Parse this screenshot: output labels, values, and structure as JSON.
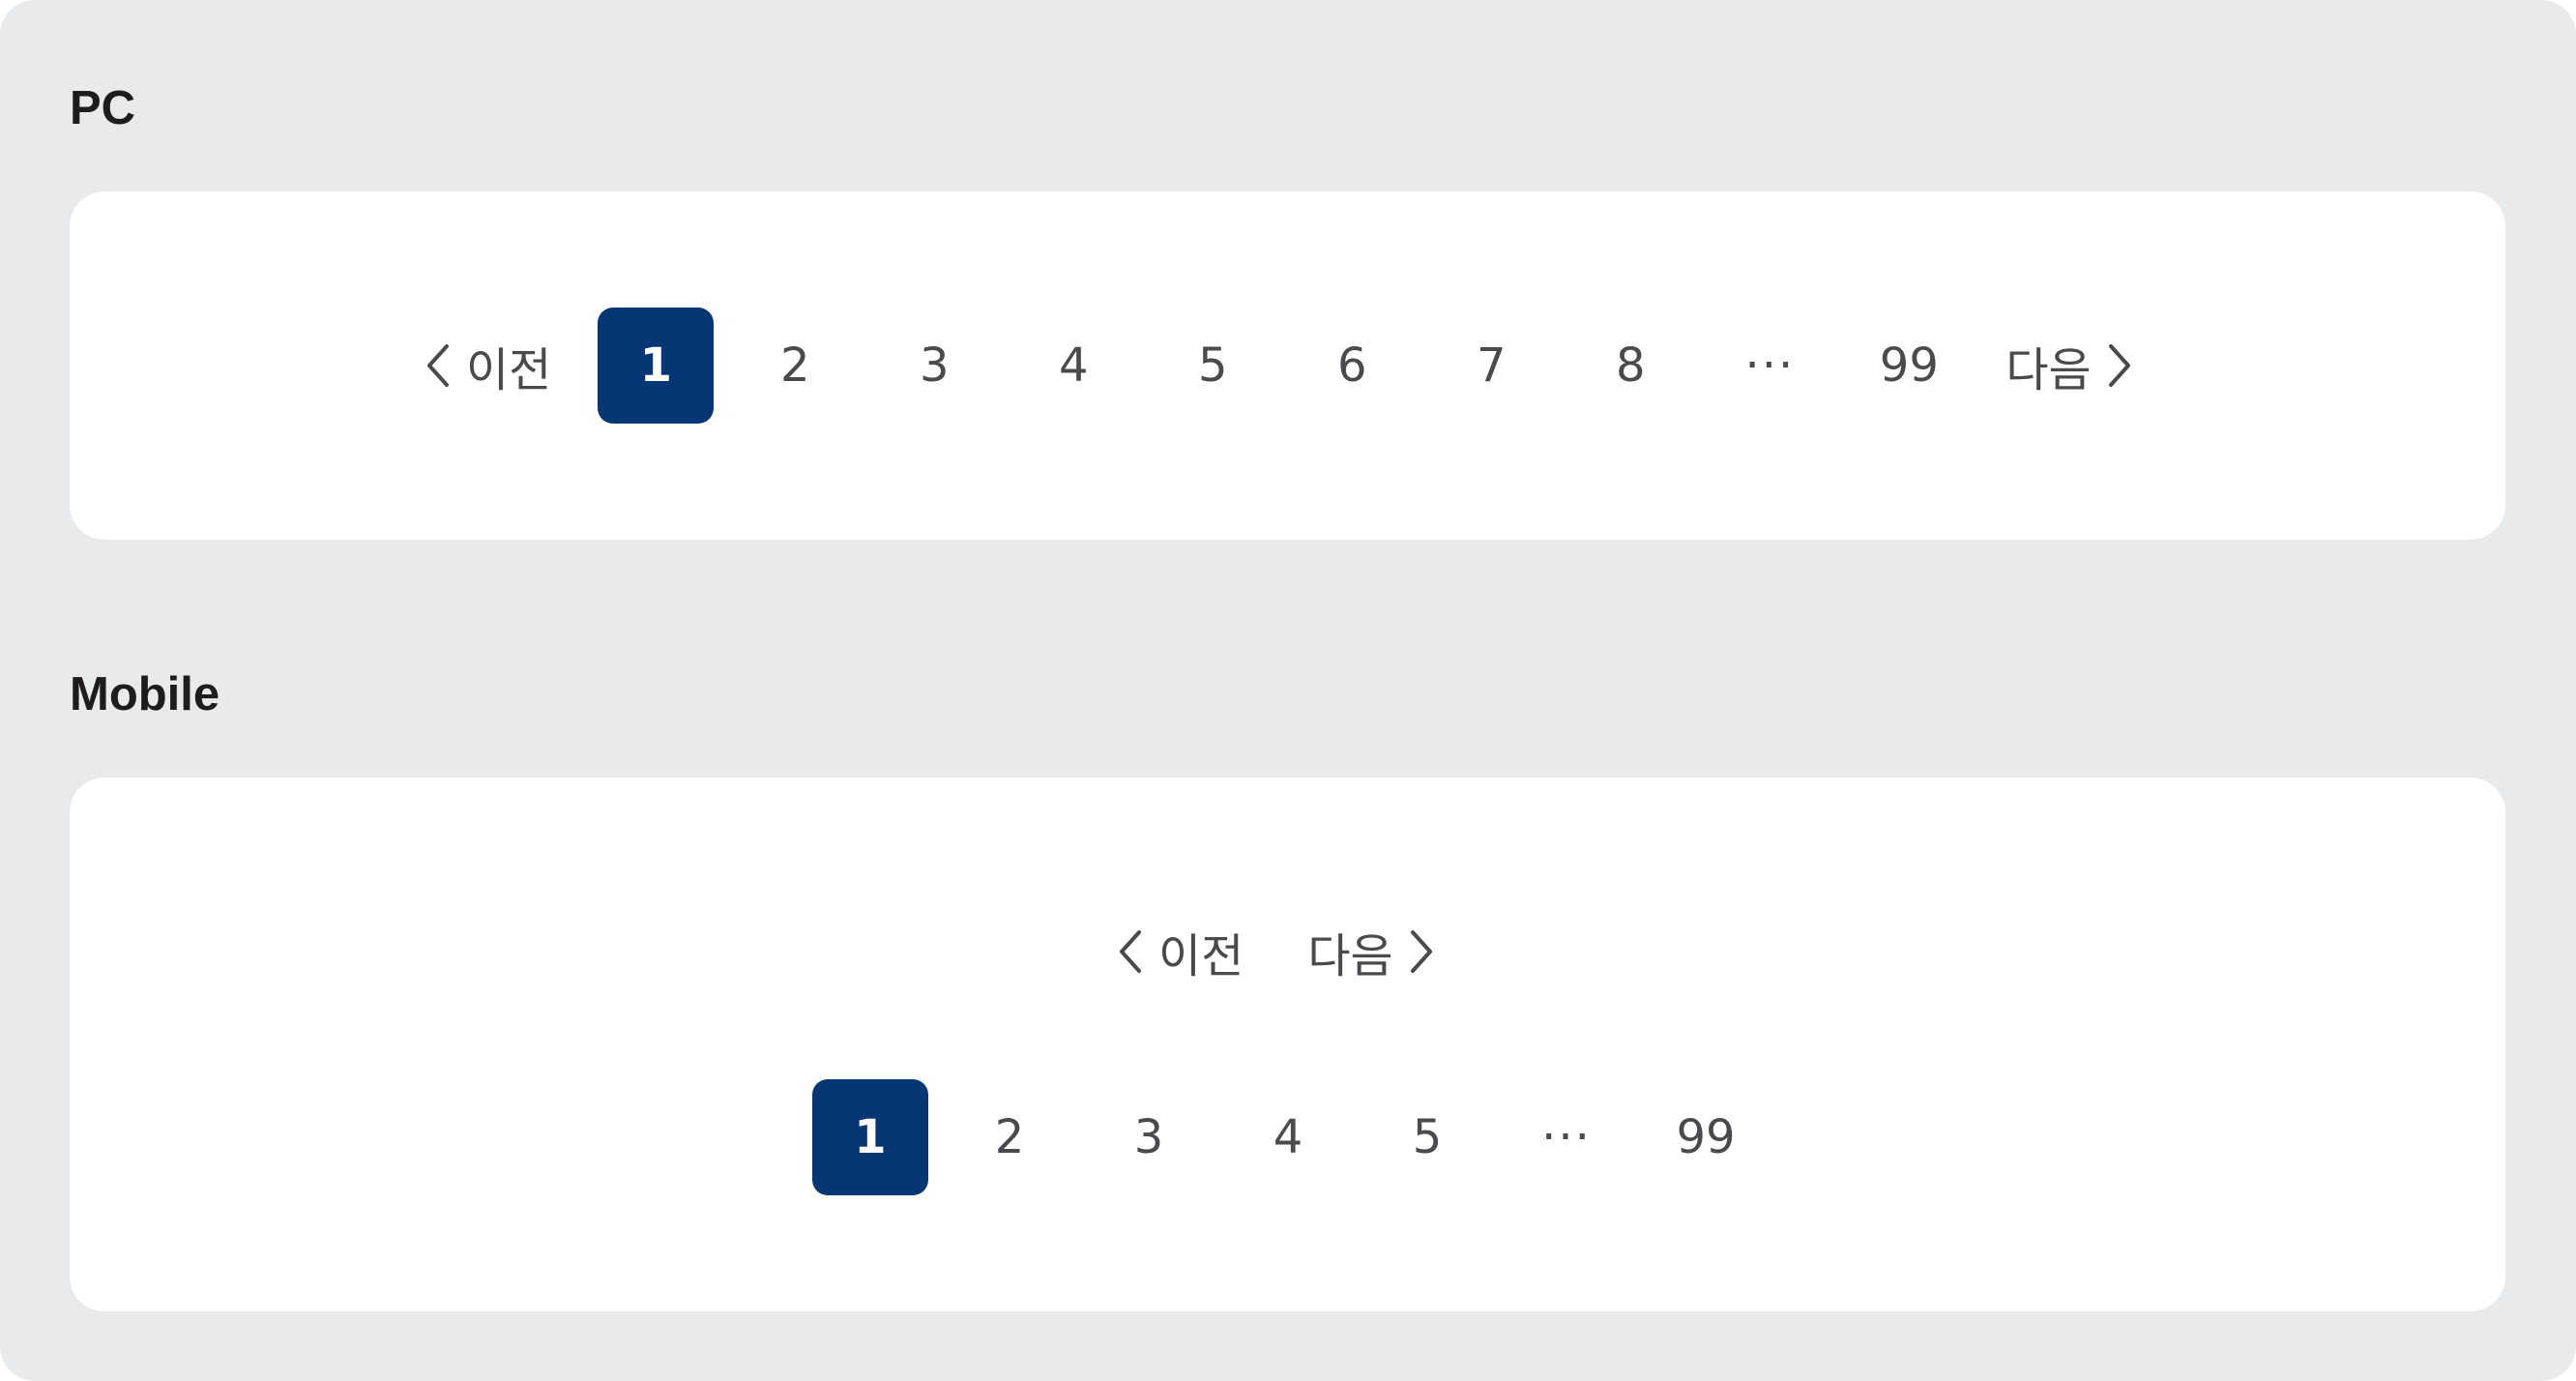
{
  "pc": {
    "title": "PC",
    "prev_label": "이전",
    "next_label": "다음",
    "pages": [
      "1",
      "2",
      "3",
      "4",
      "5",
      "6",
      "7",
      "8"
    ],
    "ellipsis": "···",
    "last_page": "99",
    "current_page": "1"
  },
  "mobile": {
    "title": "Mobile",
    "prev_label": "이전",
    "next_label": "다음",
    "pages": [
      "1",
      "2",
      "3",
      "4",
      "5"
    ],
    "ellipsis": "···",
    "last_page": "99",
    "current_page": "1"
  },
  "colors": {
    "background": "#e9eaec",
    "card": "#ffffff",
    "accent": "#063774",
    "text": "#4a4a4d"
  },
  "icons": {
    "prev": "chevron-left-icon",
    "next": "chevron-right-icon"
  }
}
